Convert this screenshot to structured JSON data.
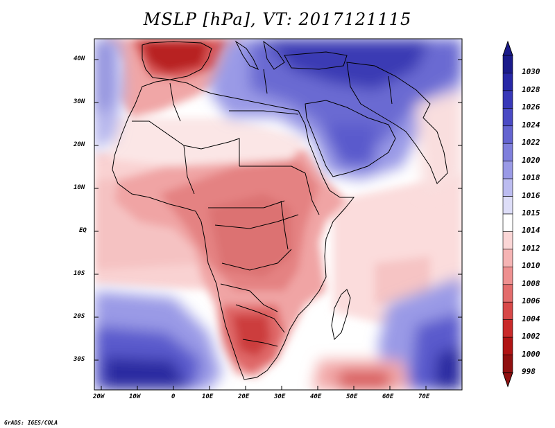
{
  "title": "MSLP [hPa], VT: 2017121115",
  "credit": "GrADS: IGES/COLA",
  "lat_ticks": [
    "40N",
    "30N",
    "20N",
    "10N",
    "EQ",
    "10S",
    "20S",
    "30S"
  ],
  "lon_ticks": [
    "20W",
    "10W",
    "0",
    "10E",
    "20E",
    "30E",
    "40E",
    "50E",
    "60E",
    "70E"
  ],
  "colorbar": {
    "labels": [
      "1030",
      "1028",
      "1026",
      "1024",
      "1022",
      "1020",
      "1018",
      "1016",
      "1015",
      "1014",
      "1012",
      "1010",
      "1008",
      "1006",
      "1004",
      "1002",
      "1000",
      "998"
    ],
    "colors": [
      "#1a1a8a",
      "#2727a6",
      "#3838b8",
      "#4a4ac4",
      "#6464d0",
      "#7f7fdc",
      "#9a9ae6",
      "#bcbcf0",
      "#dedef8",
      "#ffffff",
      "#fbd6d6",
      "#f5b4b4",
      "#ee9090",
      "#e36c6c",
      "#d84848",
      "#c92a2a",
      "#b01414",
      "#901010"
    ]
  },
  "map_colors": {
    "deep_blue": "#2a2aa0",
    "mid_blue": "#6a6ad2",
    "light_blue": "#b4b4ec",
    "pale_blue": "#dcdcf6",
    "white": "#ffffff",
    "pale_red": "#f9d2d2",
    "light_red": "#f2a8a8",
    "mid_red": "#e68484",
    "strong_red": "#d85a5a",
    "deep_red": "#b82020"
  }
}
